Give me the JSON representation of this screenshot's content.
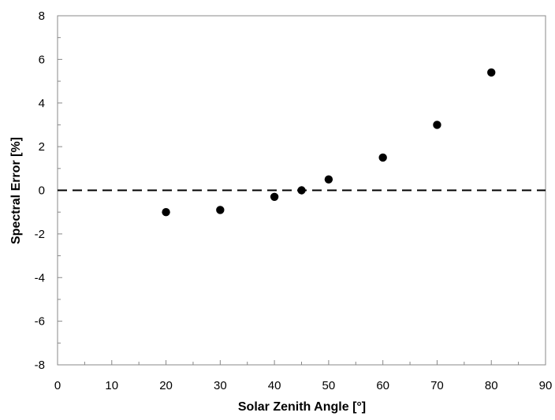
{
  "chart_data": {
    "type": "scatter",
    "title": "",
    "xlabel": "Solar Zenith Angle [°]",
    "ylabel": "Spectral Error [%]",
    "xlim": [
      0,
      90
    ],
    "ylim": [
      -8,
      8
    ],
    "xticks": [
      0,
      10,
      20,
      30,
      40,
      50,
      60,
      70,
      80,
      90
    ],
    "yticks": [
      -8,
      -6,
      -4,
      -2,
      0,
      2,
      4,
      6,
      8
    ],
    "grid": false,
    "legend": "none",
    "reference_line": {
      "y": 0,
      "style": "dashed"
    },
    "series": [
      {
        "name": "Spectral Error",
        "x": [
          20,
          30,
          40,
          45,
          50,
          60,
          70,
          80
        ],
        "y": [
          -1.0,
          -0.9,
          -0.3,
          0.0,
          0.5,
          1.5,
          3.0,
          5.4
        ]
      }
    ]
  }
}
